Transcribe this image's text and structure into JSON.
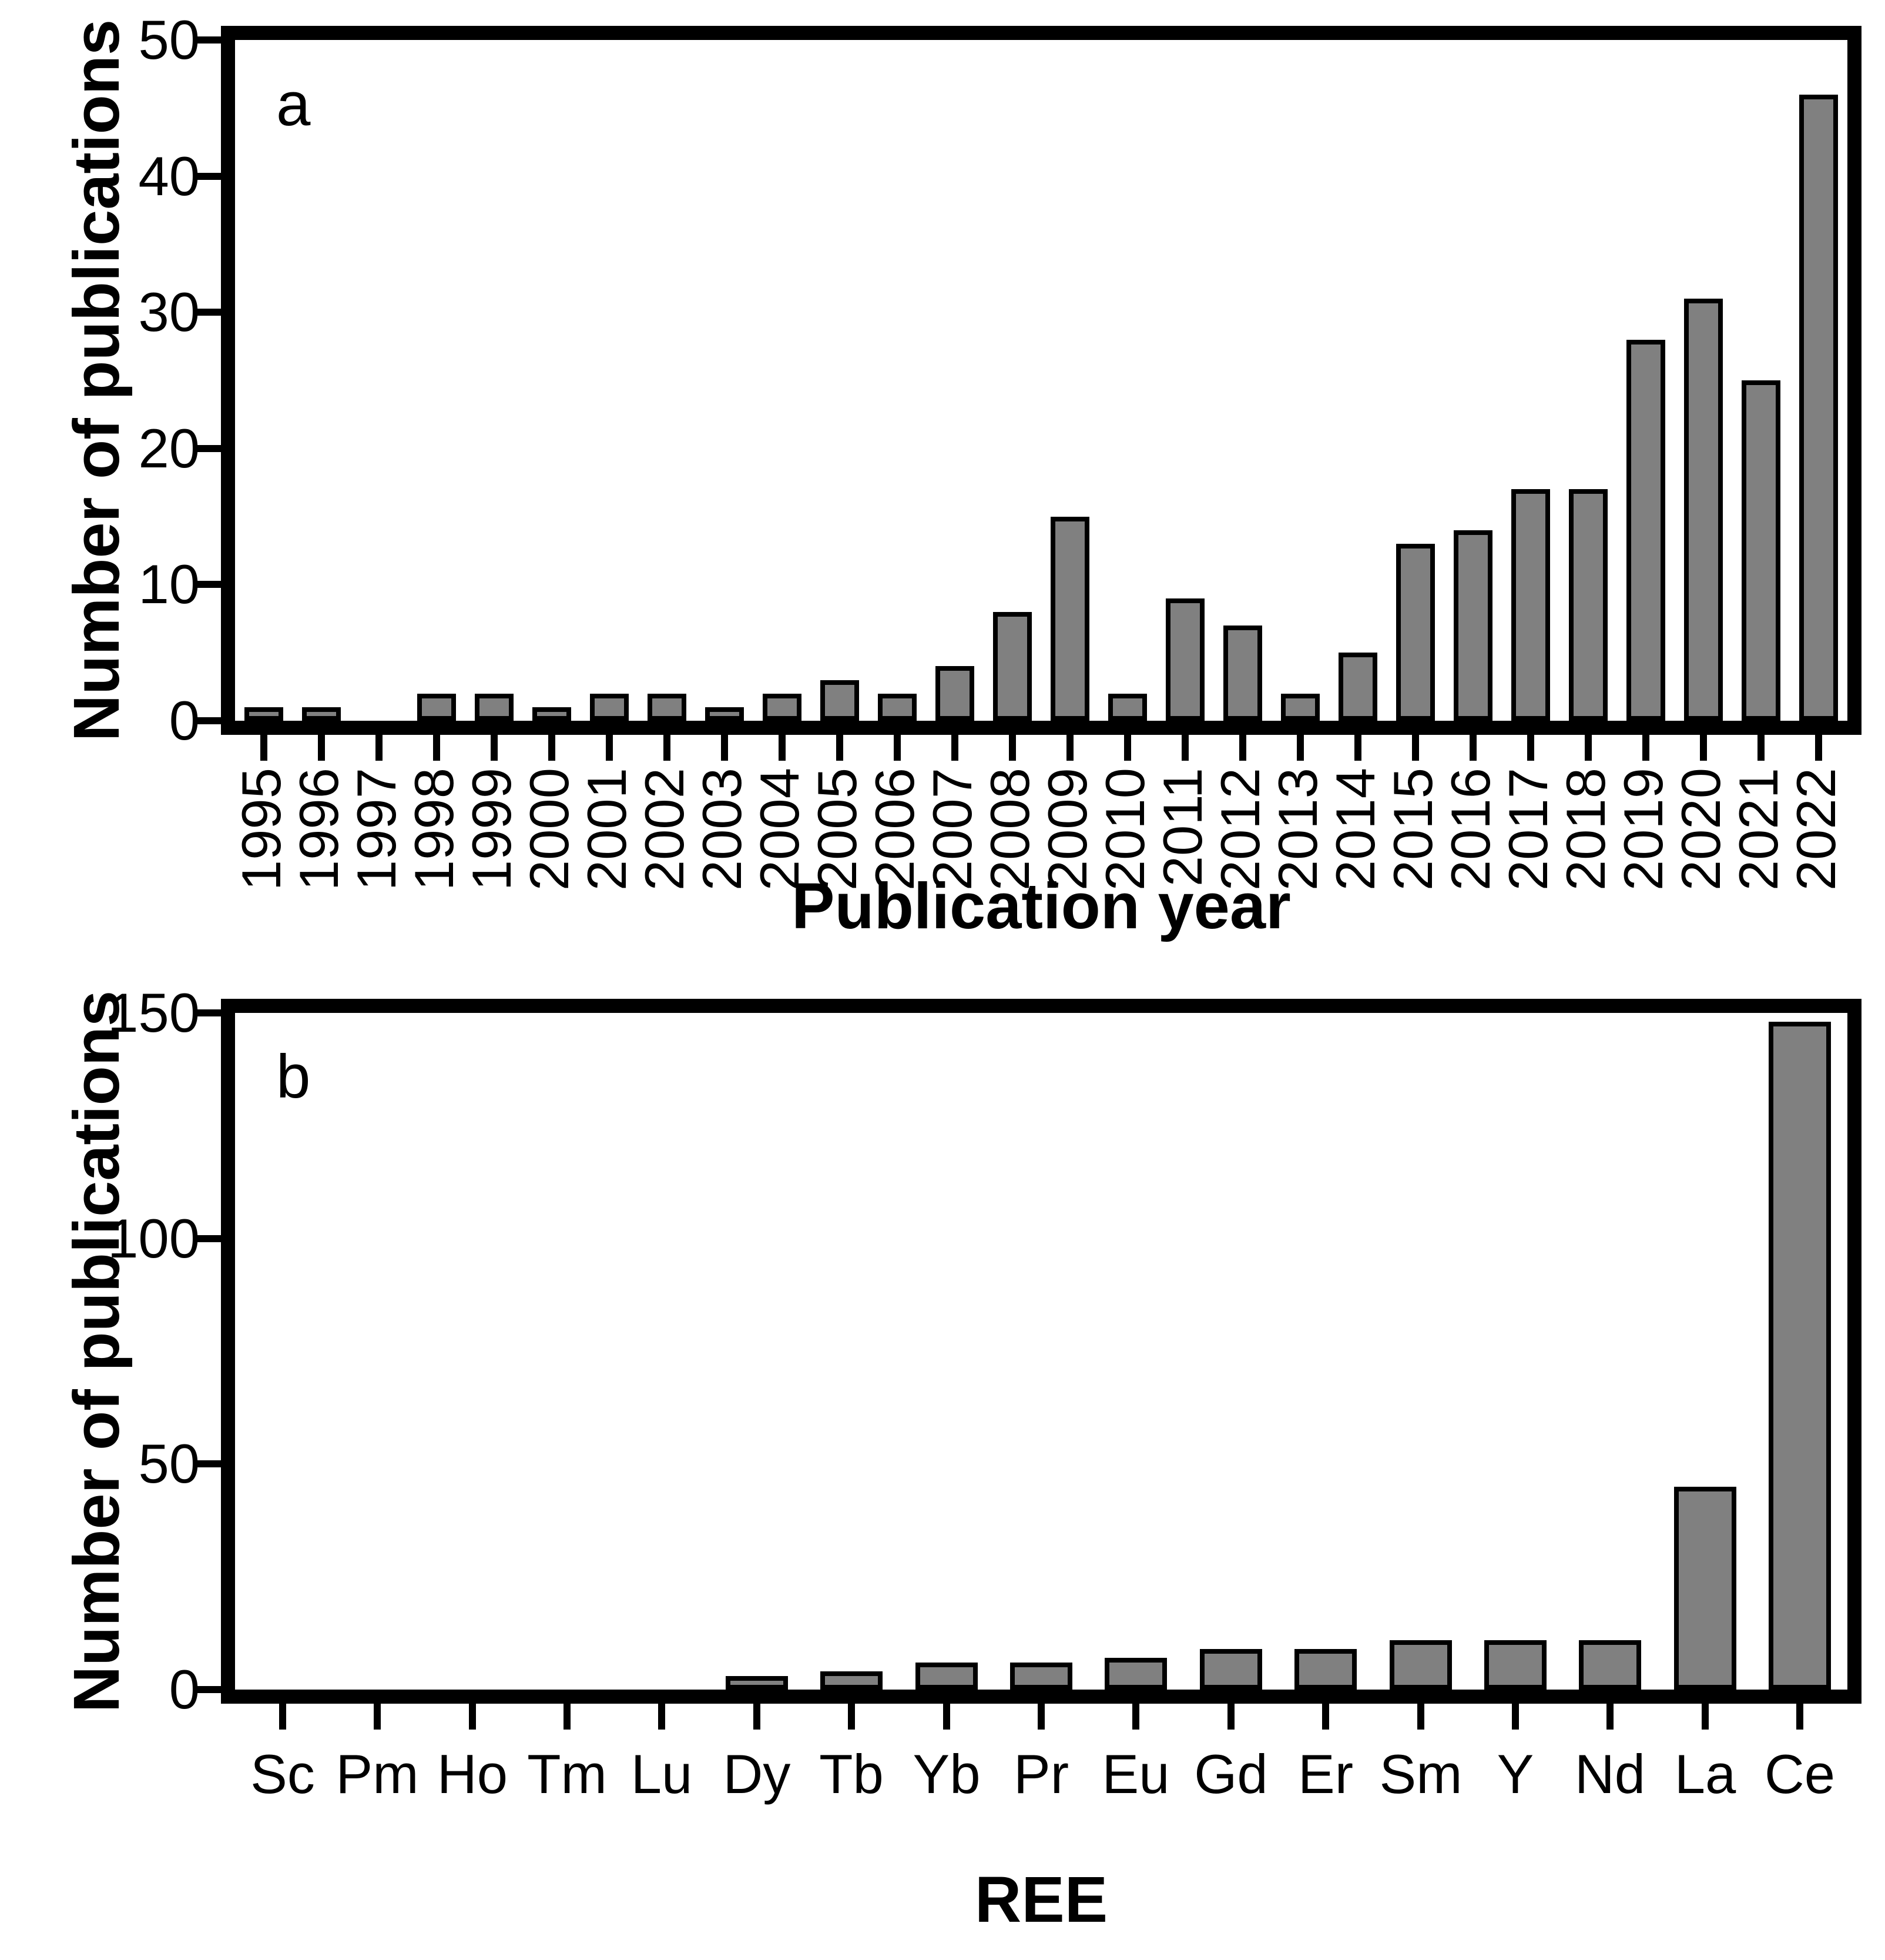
{
  "figure": {
    "background": "#ffffff",
    "bar_fill": "#808080",
    "bar_border": "#000000",
    "axis_color": "#000000",
    "text_color": "#000000"
  },
  "chart_data": [
    {
      "type": "bar",
      "panel_letter": "a",
      "title": "",
      "xlabel": "Publication year",
      "ylabel": "Number of publications",
      "ylim": [
        0,
        50
      ],
      "yticks": [
        0,
        10,
        20,
        30,
        40,
        50
      ],
      "grid": "off",
      "legend": "none",
      "x_tick_rotation": 90,
      "categories": [
        "1995",
        "1996",
        "1997",
        "1998",
        "1999",
        "2000",
        "2001",
        "2002",
        "2003",
        "2004",
        "2005",
        "2006",
        "2007",
        "2008",
        "2009",
        "2010",
        "2011",
        "2012",
        "2013",
        "2014",
        "2015",
        "2016",
        "2017",
        "2018",
        "2019",
        "2020",
        "2021",
        "2022"
      ],
      "values": [
        1,
        1,
        0,
        2,
        2,
        1,
        2,
        2,
        1,
        2,
        3,
        2,
        4,
        8,
        15,
        2,
        9,
        7,
        2,
        5,
        13,
        14,
        17,
        17,
        28,
        31,
        25,
        46
      ]
    },
    {
      "type": "bar",
      "panel_letter": "b",
      "title": "",
      "xlabel": "REE",
      "ylabel": "Number of publications",
      "ylim": [
        0,
        150
      ],
      "yticks": [
        0,
        50,
        100,
        150
      ],
      "grid": "off",
      "legend": "none",
      "x_tick_rotation": 0,
      "categories": [
        "Sc",
        "Pm",
        "Ho",
        "Tm",
        "Lu",
        "Dy",
        "Tb",
        "Yb",
        "Pr",
        "Eu",
        "Gd",
        "Er",
        "Sm",
        "Y",
        "Nd",
        "La",
        "Ce"
      ],
      "values": [
        0,
        0,
        0,
        0,
        0,
        3,
        4,
        6,
        6,
        7,
        9,
        9,
        11,
        11,
        11,
        45,
        148
      ]
    }
  ]
}
